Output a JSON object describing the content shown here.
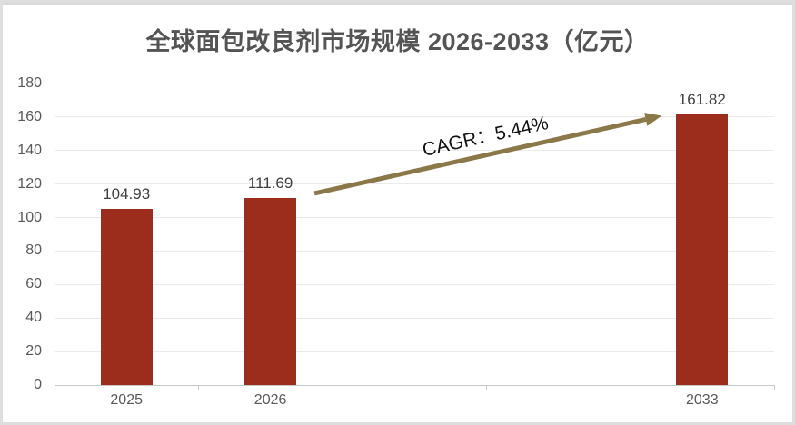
{
  "card": {
    "background": "#ffffff",
    "border_color": "#d9d9d9"
  },
  "chart_data": {
    "type": "bar",
    "title": "全球面包改良剂市场规模 2026-2033（亿元）",
    "categories": [
      "2025",
      "2026",
      "2033"
    ],
    "values": [
      104.93,
      111.69,
      161.82
    ],
    "value_labels": [
      "104.93",
      "111.69",
      "161.82"
    ],
    "slot_index": [
      0,
      1,
      4
    ],
    "num_slots": 5,
    "xlabel": "",
    "ylabel": "",
    "ylim": [
      0,
      180
    ],
    "yticks": [
      0,
      20,
      40,
      60,
      80,
      100,
      120,
      140,
      160,
      180
    ],
    "grid": true,
    "legend": "none",
    "annotation": {
      "text": "CAGR：5.44%",
      "arrow_from_category": "2026",
      "arrow_to_category": "2033"
    },
    "colors": {
      "bar": "#9C2D1D",
      "title": "#545454",
      "value_label": "#3f3f3f",
      "tick_label": "#595959",
      "gridline": "#eaeaea",
      "axis_line": "#c8c8c8",
      "arrow": "#8a7848",
      "annotation_text": "#111111"
    }
  }
}
